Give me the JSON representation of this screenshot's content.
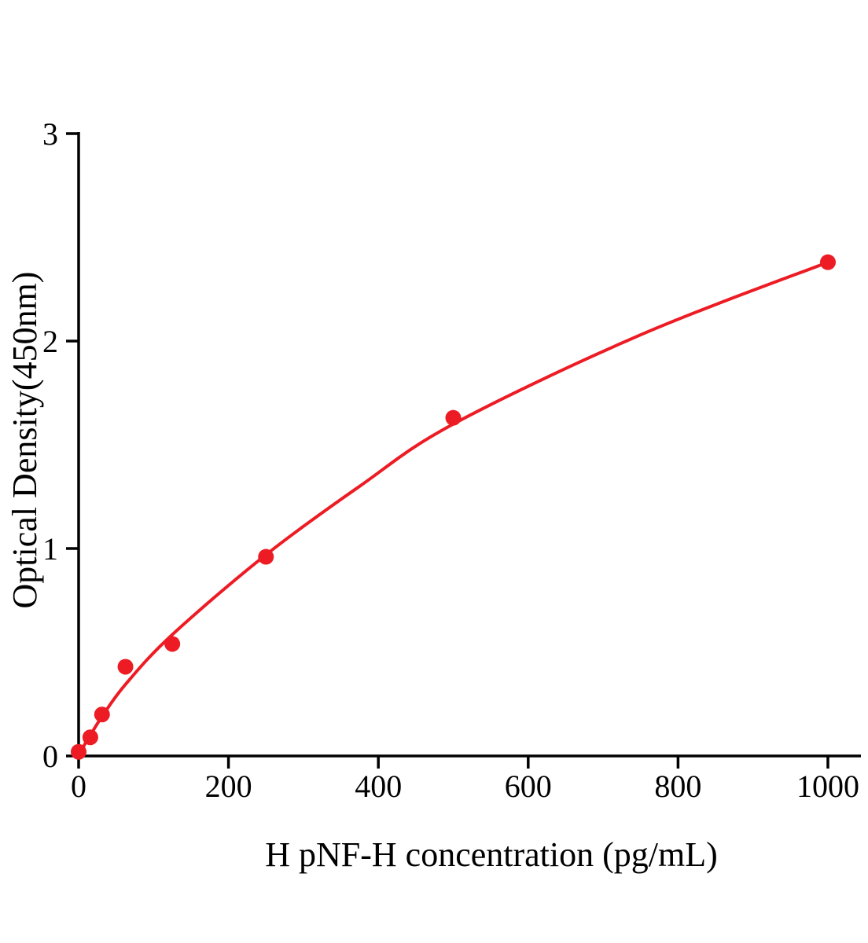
{
  "chart_data": {
    "type": "scatter",
    "title": "",
    "xlabel": "H pNF-H concentration (pg/mL)",
    "ylabel": "Optical Density(450nm)",
    "xlim": [
      0,
      1044
    ],
    "ylim": [
      0,
      3
    ],
    "x_ticks": [
      0,
      200,
      400,
      600,
      800,
      1000
    ],
    "y_ticks": [
      0,
      1,
      2,
      3
    ],
    "grid": false,
    "legend": false,
    "axis_color": "#000000",
    "series": [
      {
        "name": "standards",
        "type": "scatter",
        "color": "#ed1c24",
        "x": [
          0,
          15.6,
          31.25,
          62.5,
          125,
          250,
          500,
          1000
        ],
        "y": [
          0.02,
          0.09,
          0.2,
          0.43,
          0.54,
          0.96,
          1.63,
          2.38
        ]
      },
      {
        "name": "fit-curve",
        "type": "line",
        "color": "#ed1c24",
        "x": [
          0,
          8,
          15.6,
          31.25,
          62.5,
          125,
          250,
          375,
          500,
          750,
          1000
        ],
        "y": [
          0.005,
          0.055,
          0.1,
          0.19,
          0.345,
          0.585,
          0.97,
          1.3,
          1.6,
          2.03,
          2.38
        ]
      }
    ]
  }
}
